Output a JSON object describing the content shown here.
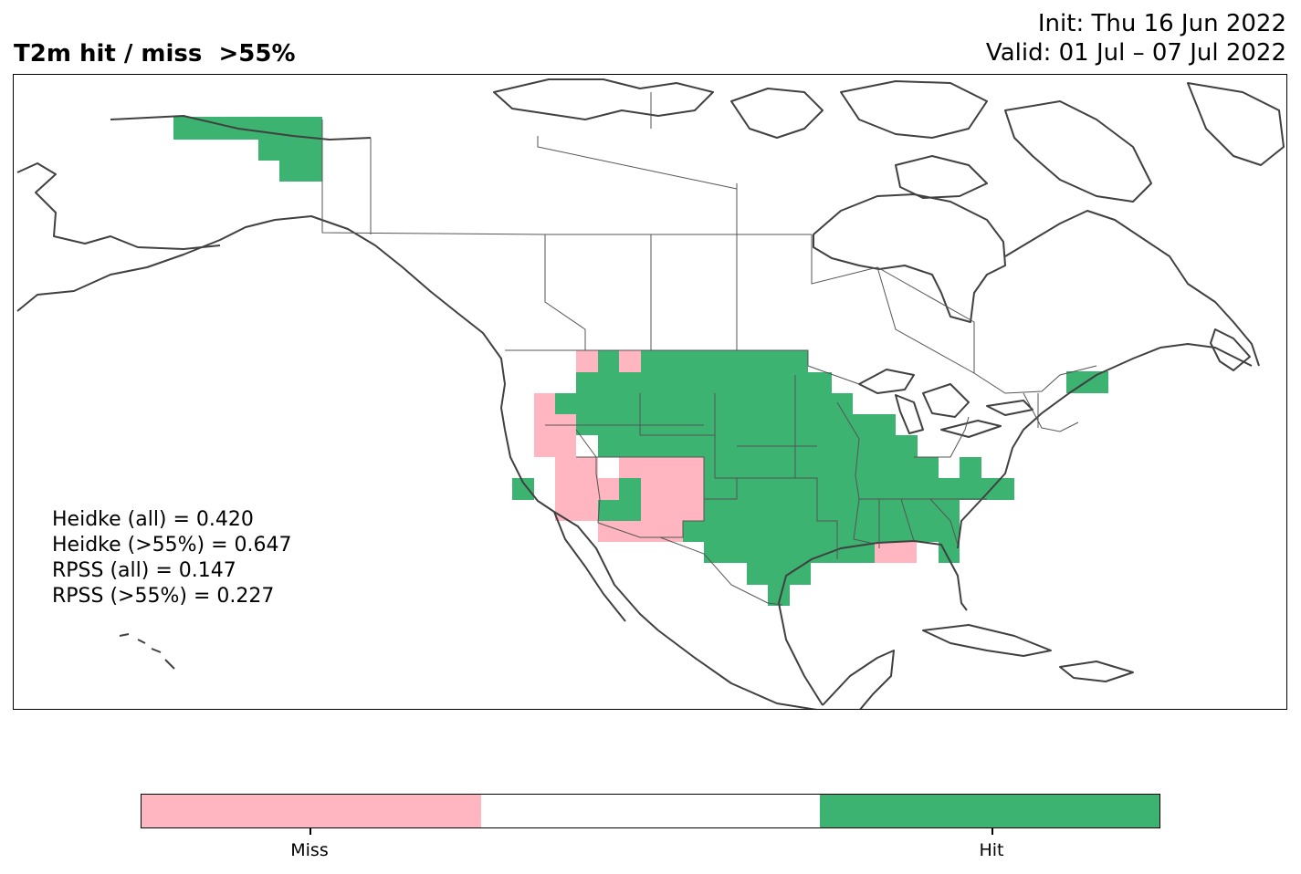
{
  "title": "T2m hit / miss  >55%",
  "init_label": "Init: Thu 16 Jun 2022",
  "valid_label": "Valid: 01 Jul – 07 Jul 2022",
  "stats": {
    "heidke_all": "Heidke (all) = 0.420",
    "heidke_55": "Heidke (>55%) = 0.647",
    "rpss_all": "RPSS (all) = 0.147",
    "rpss_55": "RPSS (>55%) = 0.227"
  },
  "colors": {
    "miss": "#ffb6c1",
    "neutral": "#ffffff",
    "hit": "#3cb371",
    "coast": "#404040",
    "border": "#555555"
  },
  "legend": {
    "categories": [
      "Miss",
      "",
      "Hit"
    ],
    "miss_label": "Miss",
    "hit_label": "Hit"
  }
}
